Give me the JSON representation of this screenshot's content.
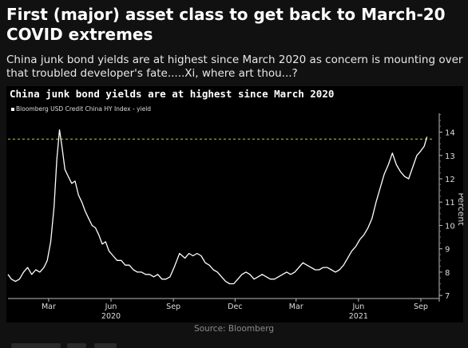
{
  "headline": "First (major) asset class to get back to March-20 COVID extremes",
  "subhead": "China junk bond yields are at highest since March 2020 as concern is mounting over that troubled developer's fate.....Xi, where art thou...?",
  "source": "Source: Bloomberg",
  "colors": {
    "background": "#111111",
    "panel": "#000000",
    "line": "#ffffff",
    "reference_line": "#c8c84a"
  },
  "chart_data": {
    "type": "line",
    "title": "China junk bond yields are at highest since March 2020",
    "ylabel": "Percent",
    "ylim": [
      6.8,
      14.6
    ],
    "y_axis_position": "right",
    "yticks": [
      7,
      8,
      9,
      10,
      11,
      12,
      13,
      14
    ],
    "reference_line": 13.7,
    "grid": false,
    "legend_position": "top-left",
    "x_ticks": [
      {
        "x": "2020-03-01",
        "label": "Mar"
      },
      {
        "x": "2020-06-01",
        "label": "Jun"
      },
      {
        "x": "2020-09-01",
        "label": "Sep"
      },
      {
        "x": "2020-12-01",
        "label": "Dec"
      },
      {
        "x": "2021-03-01",
        "label": "Mar"
      },
      {
        "x": "2021-06-01",
        "label": "Jun"
      },
      {
        "x": "2021-09-01",
        "label": "Sep"
      }
    ],
    "x_year_labels": [
      {
        "x": "2020-06-01",
        "label": "2020"
      },
      {
        "x": "2021-06-01",
        "label": "2021"
      }
    ],
    "series": [
      {
        "name": "Bloomberg USD Credit China HY Index - yield",
        "points": [
          [
            "2020-01-01",
            7.9
          ],
          [
            "2020-01-06",
            7.7
          ],
          [
            "2020-01-12",
            7.6
          ],
          [
            "2020-01-18",
            7.7
          ],
          [
            "2020-01-24",
            8.0
          ],
          [
            "2020-01-30",
            8.2
          ],
          [
            "2020-02-05",
            7.9
          ],
          [
            "2020-02-11",
            8.1
          ],
          [
            "2020-02-17",
            8.0
          ],
          [
            "2020-02-23",
            8.2
          ],
          [
            "2020-02-28",
            8.5
          ],
          [
            "2020-03-04",
            9.3
          ],
          [
            "2020-03-09",
            10.8
          ],
          [
            "2020-03-13",
            12.8
          ],
          [
            "2020-03-17",
            14.1
          ],
          [
            "2020-03-21",
            13.3
          ],
          [
            "2020-03-25",
            12.4
          ],
          [
            "2020-03-30",
            12.1
          ],
          [
            "2020-04-04",
            11.8
          ],
          [
            "2020-04-09",
            11.9
          ],
          [
            "2020-04-14",
            11.3
          ],
          [
            "2020-04-19",
            11.0
          ],
          [
            "2020-04-24",
            10.6
          ],
          [
            "2020-04-29",
            10.3
          ],
          [
            "2020-05-04",
            10.0
          ],
          [
            "2020-05-09",
            9.9
          ],
          [
            "2020-05-14",
            9.6
          ],
          [
            "2020-05-19",
            9.2
          ],
          [
            "2020-05-24",
            9.3
          ],
          [
            "2020-05-29",
            8.9
          ],
          [
            "2020-06-04",
            8.7
          ],
          [
            "2020-06-10",
            8.5
          ],
          [
            "2020-06-16",
            8.5
          ],
          [
            "2020-06-22",
            8.3
          ],
          [
            "2020-06-28",
            8.3
          ],
          [
            "2020-07-04",
            8.1
          ],
          [
            "2020-07-10",
            8.0
          ],
          [
            "2020-07-16",
            8.0
          ],
          [
            "2020-07-22",
            7.9
          ],
          [
            "2020-07-28",
            7.9
          ],
          [
            "2020-08-03",
            7.8
          ],
          [
            "2020-08-09",
            7.9
          ],
          [
            "2020-08-15",
            7.7
          ],
          [
            "2020-08-21",
            7.7
          ],
          [
            "2020-08-27",
            7.8
          ],
          [
            "2020-09-02",
            8.2
          ],
          [
            "2020-09-06",
            8.5
          ],
          [
            "2020-09-10",
            8.8
          ],
          [
            "2020-09-14",
            8.7
          ],
          [
            "2020-09-18",
            8.6
          ],
          [
            "2020-09-24",
            8.8
          ],
          [
            "2020-09-30",
            8.7
          ],
          [
            "2020-10-06",
            8.8
          ],
          [
            "2020-10-12",
            8.7
          ],
          [
            "2020-10-18",
            8.4
          ],
          [
            "2020-10-24",
            8.3
          ],
          [
            "2020-10-30",
            8.1
          ],
          [
            "2020-11-05",
            8.0
          ],
          [
            "2020-11-11",
            7.8
          ],
          [
            "2020-11-17",
            7.6
          ],
          [
            "2020-11-23",
            7.5
          ],
          [
            "2020-11-29",
            7.5
          ],
          [
            "2020-12-05",
            7.7
          ],
          [
            "2020-12-11",
            7.9
          ],
          [
            "2020-12-17",
            8.0
          ],
          [
            "2020-12-23",
            7.9
          ],
          [
            "2020-12-29",
            7.7
          ],
          [
            "2021-01-04",
            7.8
          ],
          [
            "2021-01-10",
            7.9
          ],
          [
            "2021-01-16",
            7.8
          ],
          [
            "2021-01-22",
            7.7
          ],
          [
            "2021-01-28",
            7.7
          ],
          [
            "2021-02-03",
            7.8
          ],
          [
            "2021-02-09",
            7.9
          ],
          [
            "2021-02-15",
            8.0
          ],
          [
            "2021-02-21",
            7.9
          ],
          [
            "2021-02-27",
            8.0
          ],
          [
            "2021-03-05",
            8.2
          ],
          [
            "2021-03-11",
            8.4
          ],
          [
            "2021-03-17",
            8.3
          ],
          [
            "2021-03-23",
            8.2
          ],
          [
            "2021-03-29",
            8.1
          ],
          [
            "2021-04-04",
            8.1
          ],
          [
            "2021-04-10",
            8.2
          ],
          [
            "2021-04-16",
            8.2
          ],
          [
            "2021-04-22",
            8.1
          ],
          [
            "2021-04-28",
            8.0
          ],
          [
            "2021-05-04",
            8.1
          ],
          [
            "2021-05-10",
            8.3
          ],
          [
            "2021-05-16",
            8.6
          ],
          [
            "2021-05-22",
            8.9
          ],
          [
            "2021-05-28",
            9.1
          ],
          [
            "2021-06-03",
            9.4
          ],
          [
            "2021-06-09",
            9.6
          ],
          [
            "2021-06-15",
            9.9
          ],
          [
            "2021-06-21",
            10.3
          ],
          [
            "2021-06-27",
            11.0
          ],
          [
            "2021-07-03",
            11.6
          ],
          [
            "2021-07-09",
            12.2
          ],
          [
            "2021-07-15",
            12.6
          ],
          [
            "2021-07-21",
            13.1
          ],
          [
            "2021-07-27",
            12.6
          ],
          [
            "2021-08-02",
            12.3
          ],
          [
            "2021-08-08",
            12.1
          ],
          [
            "2021-08-14",
            12.0
          ],
          [
            "2021-08-20",
            12.5
          ],
          [
            "2021-08-26",
            13.0
          ],
          [
            "2021-09-01",
            13.2
          ],
          [
            "2021-09-06",
            13.4
          ],
          [
            "2021-09-10",
            13.8
          ]
        ]
      }
    ]
  }
}
